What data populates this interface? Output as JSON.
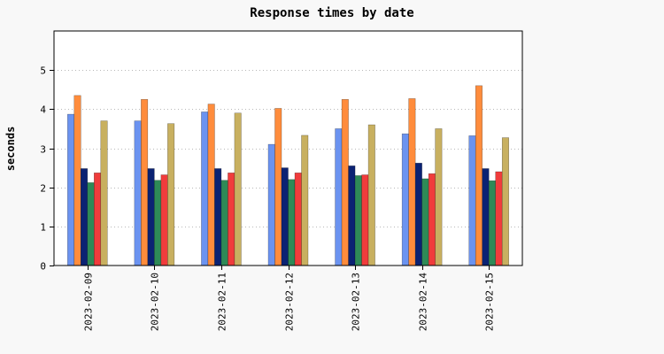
{
  "chart_data": {
    "type": "bar",
    "title": "Response times by date",
    "xlabel": "",
    "ylabel": "seconds",
    "categories": [
      "2023-02-09",
      "2023-02-10",
      "2023-02-11",
      "2023-02-12",
      "2023-02-13",
      "2023-02-14",
      "2023-02-15"
    ],
    "ylim": [
      0,
      6
    ],
    "yticks": [
      0,
      1,
      2,
      3,
      4,
      5
    ],
    "grid": "horizontal-dotted",
    "legend": "none",
    "series": [
      {
        "color": "#6b93f0",
        "values": [
          3.87,
          3.7,
          3.93,
          3.1,
          3.5,
          3.37,
          3.32
        ]
      },
      {
        "color": "#ff8c3c",
        "values": [
          4.35,
          4.25,
          4.13,
          4.02,
          4.25,
          4.27,
          4.6
        ]
      },
      {
        "color": "#0b2273",
        "values": [
          2.48,
          2.48,
          2.48,
          2.5,
          2.55,
          2.62,
          2.48
        ]
      },
      {
        "color": "#2e8a57",
        "values": [
          2.12,
          2.18,
          2.18,
          2.2,
          2.3,
          2.22,
          2.17
        ]
      },
      {
        "color": "#f03c3c",
        "values": [
          2.37,
          2.32,
          2.37,
          2.37,
          2.32,
          2.35,
          2.4
        ]
      },
      {
        "color": "#c8b060",
        "values": [
          3.7,
          3.63,
          3.9,
          3.33,
          3.6,
          3.5,
          3.27
        ]
      }
    ]
  }
}
